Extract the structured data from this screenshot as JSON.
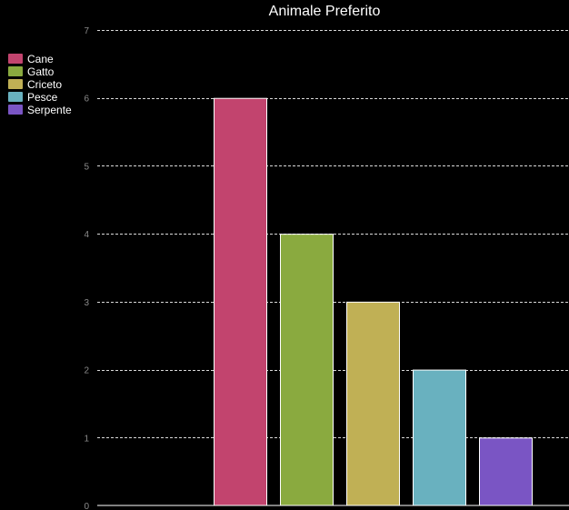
{
  "chart_data": {
    "type": "bar",
    "title": "Animale Preferito",
    "categories": [
      "Cane",
      "Gatto",
      "Criceto",
      "Pesce",
      "Serpente"
    ],
    "values": [
      6,
      4,
      3,
      2,
      1
    ],
    "colors": [
      "#c2446e",
      "#8aaa3f",
      "#c0b055",
      "#69b1bf",
      "#7a55c4"
    ],
    "ylim": [
      0,
      7
    ],
    "yticks": [
      0,
      1,
      2,
      3,
      4,
      5,
      6,
      7
    ],
    "grid": true,
    "legend": "top-left",
    "background": "#000000"
  }
}
